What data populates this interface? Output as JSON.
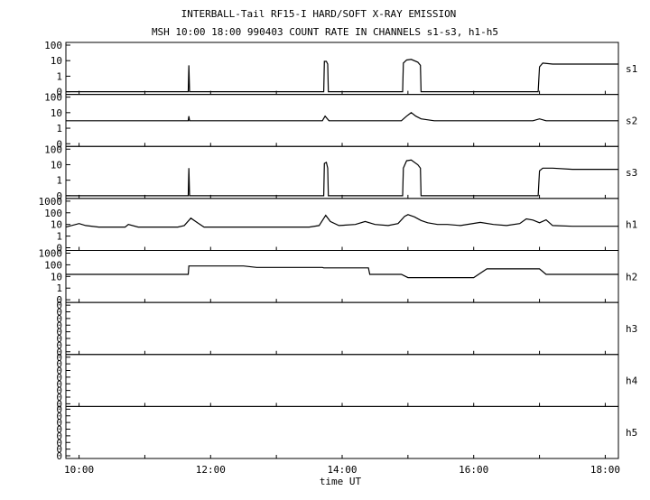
{
  "chart_data": {
    "type": "line",
    "title": "INTERBALL-Tail RF15-I HARD/SOFT X-RAY EMISSION",
    "subtitle": "MSH 10:00 18:00 990403  COUNT RATE IN CHANNELS s1-s3, h1-h5",
    "xlabel": "time UT",
    "x_ticks": [
      "10:00",
      "12:00",
      "14:00",
      "16:00",
      "18:00"
    ],
    "x_range_hours": [
      9.8,
      18.2
    ],
    "y_scale": "log",
    "grid": false,
    "panels": [
      {
        "name": "s1",
        "y_ticks": [
          "100",
          "10",
          "1",
          "0"
        ],
        "points": [
          [
            9.8,
            0
          ],
          [
            11.66,
            0
          ],
          [
            11.67,
            5
          ],
          [
            11.68,
            0
          ],
          [
            13.72,
            0
          ],
          [
            13.73,
            9
          ],
          [
            13.76,
            9
          ],
          [
            13.78,
            6
          ],
          [
            13.79,
            0
          ],
          [
            14.92,
            0
          ],
          [
            14.93,
            7
          ],
          [
            14.98,
            11
          ],
          [
            15.05,
            12
          ],
          [
            15.15,
            8
          ],
          [
            15.19,
            5
          ],
          [
            15.2,
            0
          ],
          [
            16.98,
            0
          ],
          [
            17.0,
            4
          ],
          [
            17.05,
            7
          ],
          [
            17.2,
            6
          ],
          [
            17.5,
            6
          ],
          [
            17.8,
            6
          ],
          [
            18.1,
            6
          ],
          [
            18.2,
            6
          ]
        ]
      },
      {
        "name": "s2",
        "y_ticks": [
          "100",
          "10",
          "1",
          "0"
        ],
        "points": [
          [
            9.8,
            3
          ],
          [
            10.5,
            3
          ],
          [
            11.0,
            3
          ],
          [
            11.5,
            3
          ],
          [
            11.66,
            3
          ],
          [
            11.67,
            6
          ],
          [
            11.68,
            3
          ],
          [
            12.5,
            3
          ],
          [
            13.5,
            3
          ],
          [
            13.7,
            3
          ],
          [
            13.74,
            6
          ],
          [
            13.8,
            3
          ],
          [
            14.5,
            3
          ],
          [
            14.9,
            3
          ],
          [
            14.98,
            6
          ],
          [
            15.05,
            10
          ],
          [
            15.12,
            6
          ],
          [
            15.2,
            4
          ],
          [
            15.4,
            3
          ],
          [
            16.0,
            3
          ],
          [
            16.5,
            3
          ],
          [
            16.9,
            3
          ],
          [
            17.0,
            4
          ],
          [
            17.1,
            3
          ],
          [
            17.5,
            3
          ],
          [
            18.2,
            3
          ]
        ]
      },
      {
        "name": "s3",
        "y_ticks": [
          "100",
          "10",
          "1",
          "0"
        ],
        "points": [
          [
            9.8,
            0
          ],
          [
            11.66,
            0
          ],
          [
            11.67,
            6
          ],
          [
            11.68,
            0
          ],
          [
            13.72,
            0
          ],
          [
            13.73,
            12
          ],
          [
            13.76,
            14
          ],
          [
            13.78,
            6
          ],
          [
            13.79,
            0
          ],
          [
            14.92,
            0
          ],
          [
            14.93,
            6
          ],
          [
            14.98,
            18
          ],
          [
            15.05,
            20
          ],
          [
            15.15,
            10
          ],
          [
            15.19,
            6
          ],
          [
            15.2,
            0
          ],
          [
            16.98,
            0
          ],
          [
            17.0,
            4
          ],
          [
            17.05,
            6
          ],
          [
            17.2,
            6
          ],
          [
            17.5,
            5
          ],
          [
            17.8,
            5
          ],
          [
            18.1,
            5
          ],
          [
            18.2,
            5
          ]
        ]
      },
      {
        "name": "h1",
        "y_ticks": [
          "1000",
          "100",
          "10",
          "1",
          "0"
        ],
        "points": [
          [
            9.8,
            6
          ],
          [
            10.0,
            12
          ],
          [
            10.1,
            8
          ],
          [
            10.3,
            6
          ],
          [
            10.7,
            6
          ],
          [
            10.75,
            10
          ],
          [
            10.9,
            6
          ],
          [
            11.5,
            6
          ],
          [
            11.6,
            8
          ],
          [
            11.7,
            35
          ],
          [
            11.8,
            14
          ],
          [
            11.9,
            6
          ],
          [
            12.5,
            6
          ],
          [
            13.0,
            6
          ],
          [
            13.5,
            6
          ],
          [
            13.65,
            8
          ],
          [
            13.75,
            60
          ],
          [
            13.82,
            18
          ],
          [
            13.95,
            8
          ],
          [
            14.2,
            10
          ],
          [
            14.35,
            18
          ],
          [
            14.5,
            10
          ],
          [
            14.7,
            8
          ],
          [
            14.85,
            12
          ],
          [
            14.95,
            50
          ],
          [
            15.0,
            70
          ],
          [
            15.1,
            45
          ],
          [
            15.2,
            22
          ],
          [
            15.3,
            14
          ],
          [
            15.45,
            10
          ],
          [
            15.6,
            10
          ],
          [
            15.8,
            8
          ],
          [
            16.1,
            15
          ],
          [
            16.3,
            10
          ],
          [
            16.5,
            8
          ],
          [
            16.7,
            12
          ],
          [
            16.8,
            30
          ],
          [
            16.9,
            24
          ],
          [
            17.0,
            14
          ],
          [
            17.1,
            25
          ],
          [
            17.2,
            8
          ],
          [
            17.5,
            7
          ],
          [
            18.0,
            7
          ],
          [
            18.2,
            7
          ]
        ]
      },
      {
        "name": "h2",
        "y_ticks": [
          "1000",
          "100",
          "10",
          "1",
          "0"
        ],
        "points": [
          [
            9.8,
            15
          ],
          [
            11.66,
            15
          ],
          [
            11.67,
            80
          ],
          [
            12.5,
            80
          ],
          [
            12.7,
            60
          ],
          [
            13.5,
            60
          ],
          [
            13.7,
            60
          ],
          [
            13.72,
            55
          ],
          [
            14.4,
            55
          ],
          [
            14.42,
            15
          ],
          [
            14.9,
            15
          ],
          [
            15.0,
            8
          ],
          [
            15.5,
            8
          ],
          [
            16.0,
            8
          ],
          [
            16.2,
            45
          ],
          [
            16.5,
            45
          ],
          [
            17.0,
            45
          ],
          [
            17.1,
            15
          ],
          [
            18.2,
            15
          ]
        ]
      },
      {
        "name": "h3",
        "y_ticks": [
          "0",
          "0",
          "0",
          "0",
          "0",
          "0",
          "0",
          "0"
        ],
        "points": []
      },
      {
        "name": "h4",
        "y_ticks": [
          "0",
          "0",
          "0",
          "0",
          "0",
          "0",
          "0",
          "0"
        ],
        "points": []
      },
      {
        "name": "h5",
        "y_ticks": [
          "0",
          "0",
          "0",
          "0",
          "0",
          "0",
          "0",
          "0"
        ],
        "points": []
      }
    ]
  }
}
